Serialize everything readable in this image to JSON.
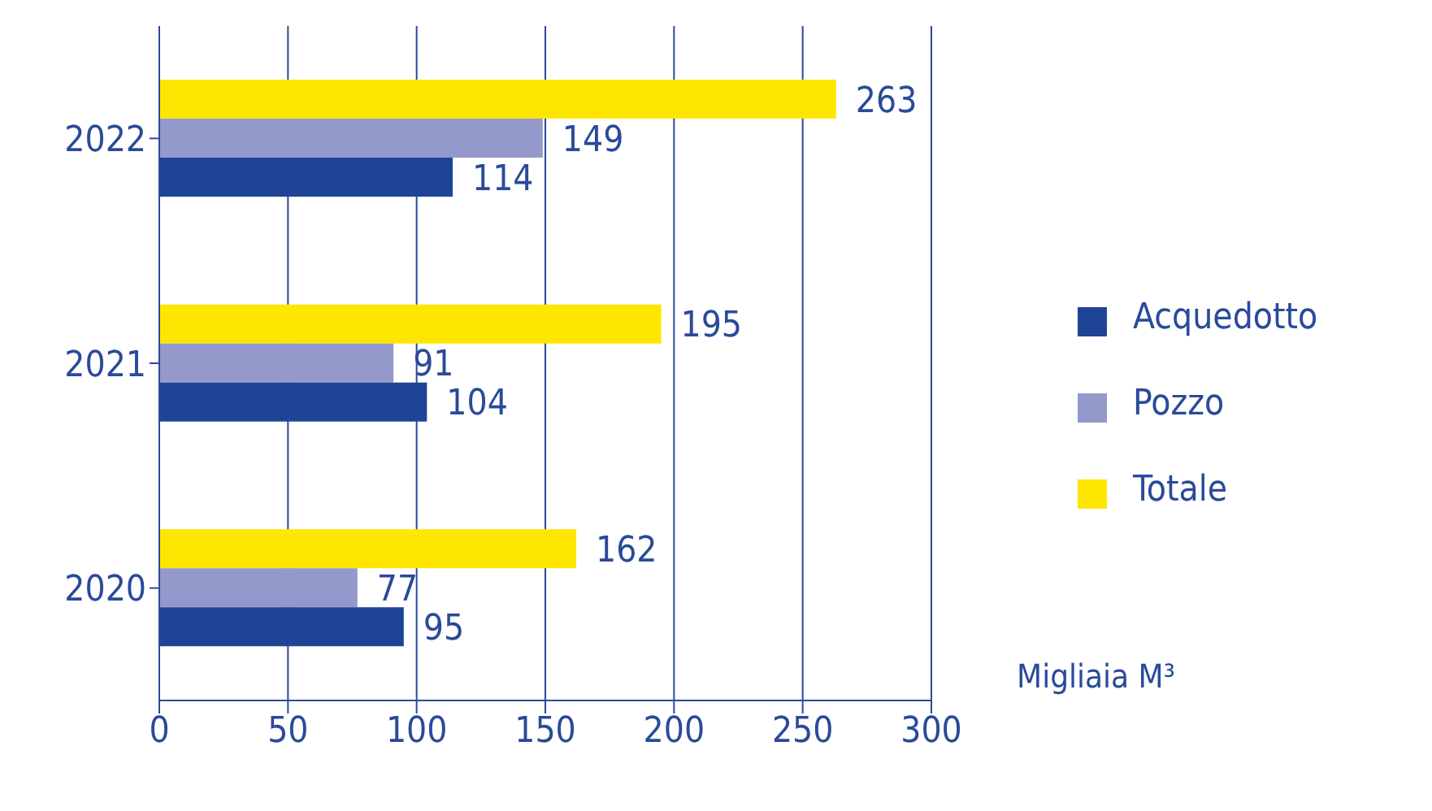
{
  "chart_data": {
    "type": "bar",
    "orientation": "horizontal",
    "categories": [
      "2022",
      "2021",
      "2020"
    ],
    "series": [
      {
        "name": "Totale",
        "color": "#ffe600",
        "values": [
          263,
          195,
          162
        ]
      },
      {
        "name": "Pozzo",
        "color": "#9499cc",
        "values": [
          149,
          91,
          77
        ]
      },
      {
        "name": "Acquedotto",
        "color": "#1e4595",
        "values": [
          114,
          104,
          95
        ]
      }
    ],
    "xlabel": "Migliaia M³",
    "xlim": [
      0,
      300
    ],
    "xticks": [
      0,
      50,
      100,
      150,
      200,
      250,
      300
    ],
    "grid": "x",
    "legend": "right",
    "data_labels": true
  }
}
